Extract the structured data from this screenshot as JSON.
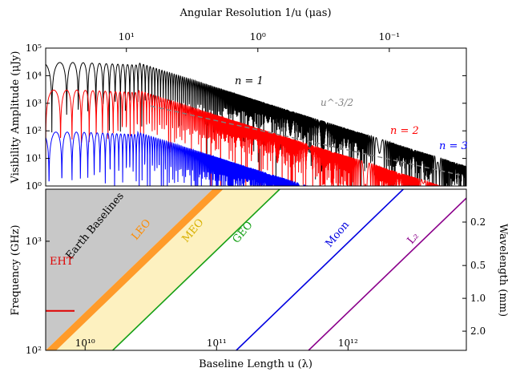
{
  "chart_data": [
    {
      "type": "line",
      "panel": "top",
      "top_axis_label": "Angular Resolution 1/u (μas)",
      "top_axis_ticks": [
        "10¹",
        "10⁰",
        "10⁻¹"
      ],
      "ylabel": "Visibility Amplitude (μJy)",
      "yscale": "log",
      "ylim": [
        1,
        100000
      ],
      "y_ticks": [
        "10⁰",
        "10¹",
        "10²",
        "10³",
        "10⁴",
        "10⁵"
      ],
      "series": [
        {
          "name": "n = 1",
          "color": "#000000",
          "peak_amplitude": 30000,
          "first_null_log10_u": 9.86,
          "fringe_period_log10_u": 0.12
        },
        {
          "name": "n = 2",
          "color": "#ff0000",
          "peak_amplitude": 3000,
          "first_null_log10_u": 9.9,
          "fringe_period_log10_u": 0.1
        },
        {
          "name": "n = 3",
          "color": "#0000ff",
          "peak_amplitude": 90,
          "first_null_log10_u": 9.9,
          "fringe_period_log10_u": 0.09
        }
      ],
      "reference_line": {
        "label": "u^-3/2",
        "color": "#808080",
        "slope": -1.5,
        "points": [
          [
            10.5,
            2.9
          ],
          [
            12.85,
            0.4
          ]
        ]
      }
    },
    {
      "type": "line",
      "panel": "bottom",
      "xlabel": "Baseline Length u (λ)",
      "xscale": "log",
      "x_ticks": [
        "10¹⁰",
        "10¹¹",
        "10¹²"
      ],
      "ylabel": "Frequency (GHz)",
      "yscale": "log",
      "ylim": [
        100,
        3000
      ],
      "y_ticks": [
        "10²",
        "10³"
      ],
      "right_axis_label": "Wavelength (mm)",
      "right_axis_ticks": [
        "0.2",
        "0.5",
        "1.0",
        "2.0"
      ],
      "regions": [
        {
          "name": "Earth Baselines",
          "color": "#c8c8c8"
        },
        {
          "name": "LEO",
          "color": "#ff9b2a"
        },
        {
          "name": "MEO",
          "color": "#fdf1c0"
        }
      ],
      "lines": [
        {
          "name": "GEO",
          "color": "#16a016",
          "log10_u_at_100GHz": 10.21
        },
        {
          "name": "Moon",
          "color": "#0000e0",
          "log10_u_at_100GHz": 11.15
        },
        {
          "name": "L₂",
          "color": "#8b008b",
          "log10_u_at_100GHz": 11.7
        }
      ],
      "ref_mark": {
        "name": "EHT",
        "color": "#e00000",
        "frequency_GHz": 230
      }
    }
  ]
}
